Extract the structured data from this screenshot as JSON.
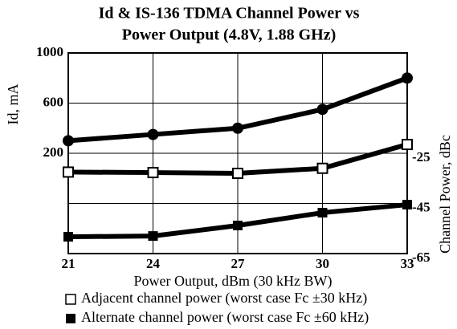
{
  "chart_data": {
    "type": "line",
    "title": [
      "Id & IS-136 TDMA Channel Power vs",
      "Power Output (4.8V, 1.88 GHz)"
    ],
    "xlabel": "Power Output, dBm (30 kHz BW)",
    "ylabel": "Id, mA",
    "y2label": "Channel Power, dBc",
    "x": [
      21,
      24,
      27,
      30,
      33
    ],
    "xlim": [
      21,
      33
    ],
    "xticks": [
      21,
      24,
      27,
      30,
      33
    ],
    "ylim": [
      -600,
      1000
    ],
    "yticks": [
      200,
      600,
      1000
    ],
    "y2lim": [
      -65,
      15
    ],
    "y2ticks": [
      -65,
      -45,
      -25
    ],
    "grid": true,
    "series": [
      {
        "color": "#000000",
        "marker": "circle",
        "values": [
          300,
          350,
          400,
          550,
          800
        ]
      },
      {
        "name": "Adjacent channel power (worst case Fc ±30 kHz)",
        "color": "#000000",
        "marker": "open-square",
        "axis": "y2",
        "values": [
          -32.5,
          -32.7,
          -33,
          -31,
          -21.5
        ]
      },
      {
        "name": "Alternate channel power (worst case Fc ±60 kHz)",
        "color": "#000000",
        "marker": "square",
        "axis": "y2",
        "values": [
          -58.3,
          -58,
          -53.8,
          -48.7,
          -45.5
        ]
      }
    ]
  }
}
